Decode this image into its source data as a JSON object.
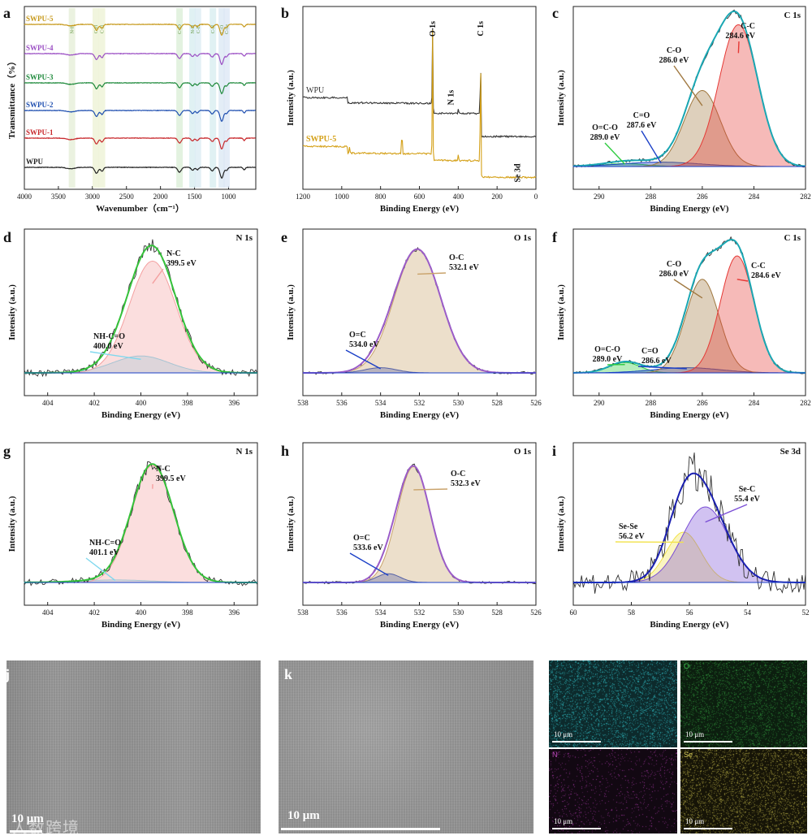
{
  "figure": {
    "watermark": "人数跨境"
  },
  "chart_data": [
    {
      "id": "a",
      "type": "line",
      "panel_label": "a",
      "xlabel": "Wavenumber（cm⁻¹）",
      "ylabel": "Transmittance（%）",
      "xlim": [
        4000,
        600
      ],
      "xticks": [
        4000,
        3500,
        3000,
        2500,
        2000,
        1500,
        1000
      ],
      "series": [
        {
          "name": "SWPU-5",
          "color": "#c79a1d"
        },
        {
          "name": "SWPU-4",
          "color": "#9b4fc4"
        },
        {
          "name": "SWPU-3",
          "color": "#1f8a3c"
        },
        {
          "name": "SWPU-2",
          "color": "#1f4fb0"
        },
        {
          "name": "SWPU-1",
          "color": "#c8282c"
        },
        {
          "name": "WPU",
          "color": "#222222"
        }
      ],
      "bands": [
        3300,
        2950,
        2860,
        1720,
        1530,
        1450,
        1230,
        1100,
        1030
      ],
      "band_labels": [
        "N-H",
        "C-H",
        "C-H",
        "C=O",
        "N-H",
        "C-H",
        "C-N",
        "C-O",
        "C-Se"
      ]
    },
    {
      "id": "b",
      "type": "line",
      "panel_label": "b",
      "xlabel": "Binding Energy (eV)",
      "ylabel": "Intensity (a.u.)",
      "xlim": [
        1200,
        0
      ],
      "xticks": [
        1200,
        1000,
        800,
        600,
        400,
        200,
        0
      ],
      "series": [
        {
          "name": "WPU",
          "color": "#333333"
        },
        {
          "name": "SWPU-5",
          "color": "#d4a017"
        }
      ],
      "annotations": [
        {
          "text": "O 1s",
          "x": 532
        },
        {
          "text": "C 1s",
          "x": 285
        },
        {
          "text": "N 1s",
          "x": 400
        },
        {
          "text": "Se 3d",
          "x": 56
        }
      ]
    },
    {
      "id": "c",
      "type": "line",
      "panel_label": "c",
      "title": "C 1s",
      "xlabel": "Binding Energy (eV)",
      "ylabel": "Intensity (a.u.)",
      "xlim": [
        291,
        282
      ],
      "xticks": [
        290,
        288,
        286,
        284,
        282
      ],
      "peaks": [
        {
          "name": "C-C",
          "value": "284.6 eV",
          "center": 284.6,
          "height": 0.97,
          "width": 0.75,
          "color": "#e53935"
        },
        {
          "name": "C-O",
          "value": "286.0 eV",
          "center": 286.0,
          "height": 0.52,
          "width": 0.7,
          "color": "#a07840"
        },
        {
          "name": "C=O",
          "value": "287.6 eV",
          "center": 287.6,
          "height": 0.03,
          "width": 1.5,
          "color": "#1a3fc7"
        },
        {
          "name": "O=C-O",
          "value": "289.0 eV",
          "center": 289.0,
          "height": 0.02,
          "width": 0.8,
          "color": "#2ecc40"
        }
      ]
    },
    {
      "id": "d",
      "type": "line",
      "panel_label": "d",
      "title": "N 1s",
      "xlabel": "Binding Energy (eV)",
      "ylabel": "Intensity (a.u.)",
      "xlim": [
        405,
        395
      ],
      "xticks": [
        404,
        402,
        400,
        398,
        396
      ],
      "peaks": [
        {
          "name": "N-C",
          "value": "399.5 eV",
          "center": 399.5,
          "height": 0.86,
          "width": 1.0,
          "color": "#f4a0a0"
        },
        {
          "name": "NH-C=O",
          "value": "400.0 eV",
          "center": 400.0,
          "height": 0.13,
          "width": 1.2,
          "color": "#7fd8ee"
        }
      ]
    },
    {
      "id": "e",
      "type": "line",
      "panel_label": "e",
      "title": "O 1s",
      "xlabel": "Binding Energy (eV)",
      "ylabel": "Intensity (a.u.)",
      "xlim": [
        538,
        526
      ],
      "xticks": [
        538,
        536,
        534,
        532,
        530,
        528,
        526
      ],
      "peaks": [
        {
          "name": "O-C",
          "value": "532.1 eV",
          "center": 532.1,
          "height": 0.95,
          "width": 1.2,
          "color": "#c9a26a"
        },
        {
          "name": "O=C",
          "value": "534.0 eV",
          "center": 534.0,
          "height": 0.04,
          "width": 0.8,
          "color": "#1a3fc7"
        }
      ]
    },
    {
      "id": "f",
      "type": "line",
      "panel_label": "f",
      "title": "C 1s",
      "xlabel": "Binding Energy (eV)",
      "ylabel": "Intensity (a.u.)",
      "xlim": [
        291,
        282
      ],
      "xticks": [
        290,
        288,
        286,
        284,
        282
      ],
      "peaks": [
        {
          "name": "C-C",
          "value": "284.6 eV",
          "center": 284.65,
          "height": 0.9,
          "width": 0.65,
          "color": "#e53935"
        },
        {
          "name": "C-O",
          "value": "286.0 eV",
          "center": 286.0,
          "height": 0.72,
          "width": 0.65,
          "color": "#a07840"
        },
        {
          "name": "C=O",
          "value": "286.6 eV",
          "center": 286.6,
          "height": 0.04,
          "width": 1.3,
          "color": "#1a3fc7"
        },
        {
          "name": "O=C-O",
          "value": "289.0 eV",
          "center": 289.0,
          "height": 0.08,
          "width": 0.6,
          "color": "#2ecc40"
        }
      ]
    },
    {
      "id": "g",
      "type": "line",
      "panel_label": "g",
      "title": "N 1s",
      "xlabel": "Binding Energy (eV)",
      "ylabel": "Intensity (a.u.)",
      "xlim": [
        405,
        395
      ],
      "xticks": [
        404,
        402,
        400,
        398,
        396
      ],
      "peaks": [
        {
          "name": "N-C",
          "value": "399.5 eV",
          "center": 399.5,
          "height": 0.93,
          "width": 0.9,
          "color": "#f4a0a0"
        },
        {
          "name": "NH-C=O",
          "value": "401.1 eV",
          "center": 401.1,
          "height": 0.02,
          "width": 1.5,
          "color": "#7fd8ee"
        }
      ]
    },
    {
      "id": "h",
      "type": "line",
      "panel_label": "h",
      "title": "O 1s",
      "xlabel": "Binding Energy (eV)",
      "ylabel": "Intensity (a.u.)",
      "xlim": [
        538,
        526
      ],
      "xticks": [
        538,
        536,
        534,
        532,
        530,
        528,
        526
      ],
      "peaks": [
        {
          "name": "O-C",
          "value": "532.3 eV",
          "center": 532.3,
          "height": 0.92,
          "width": 0.85,
          "color": "#c9a26a"
        },
        {
          "name": "O=C",
          "value": "533.6 eV",
          "center": 533.6,
          "height": 0.07,
          "width": 0.6,
          "color": "#1a3fc7"
        }
      ]
    },
    {
      "id": "i",
      "type": "line",
      "panel_label": "i",
      "title": "Se 3d",
      "xlabel": "Binding Energy (eV)",
      "ylabel": "Intensity (a.u.)",
      "xlim": [
        60,
        52
      ],
      "xticks": [
        60,
        58,
        56,
        54,
        52
      ],
      "peaks": [
        {
          "name": "Se-C",
          "value": "55.4 eV",
          "center": 55.45,
          "height": 0.6,
          "width": 0.8,
          "color": "#7b4fd6"
        },
        {
          "name": "Se-Se",
          "value": "56.2 eV",
          "center": 56.2,
          "height": 0.4,
          "width": 0.6,
          "color": "#f2e24a"
        }
      ]
    }
  ],
  "images": {
    "j": {
      "panel_label": "j",
      "scale": "10 μm"
    },
    "k": {
      "panel_label": "k",
      "scale": "10 μm"
    },
    "l": {
      "panel_label": "l",
      "maps": [
        {
          "element": "C",
          "scale": "10 μm",
          "color": "#2fb9c0"
        },
        {
          "element": "O",
          "scale": "10 μm",
          "color": "#2f8f3a"
        },
        {
          "element": "N",
          "scale": "10 μm",
          "color": "#a93aa8"
        },
        {
          "element": "Se",
          "scale": "10 μm",
          "color": "#b6ac45"
        }
      ]
    }
  }
}
